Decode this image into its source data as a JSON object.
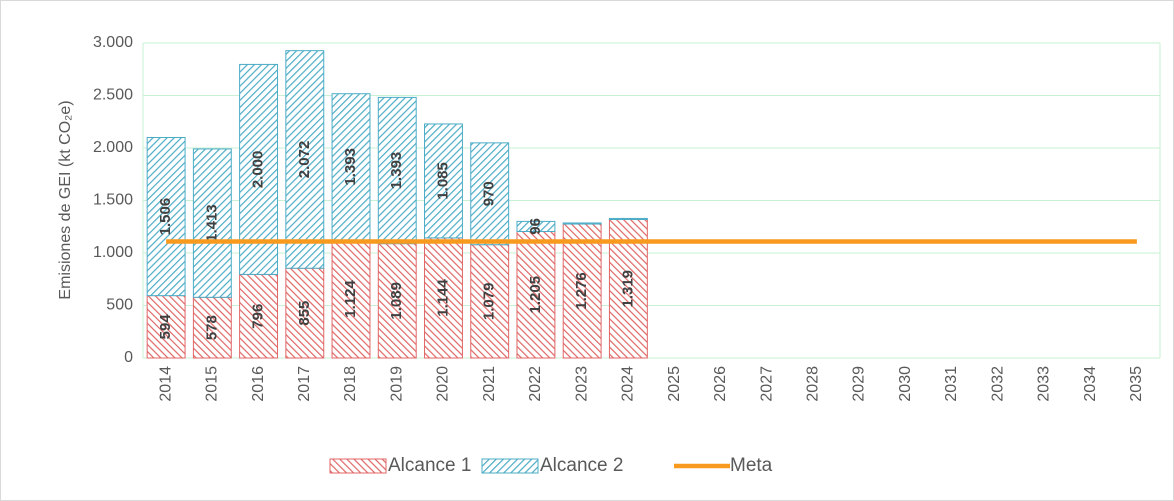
{
  "chart_data": {
    "type": "stacked-bar-line",
    "y_label": "Emisiones de GEI (kt CO₂e)",
    "categories": [
      "2014",
      "2015",
      "2016",
      "2017",
      "2018",
      "2019",
      "2020",
      "2021",
      "2022",
      "2023",
      "2024",
      "2025",
      "2026",
      "2027",
      "2028",
      "2029",
      "2030",
      "2031",
      "2032",
      "2033",
      "2034",
      "2035"
    ],
    "series": [
      {
        "name": "Alcance 1",
        "color": "#e06666",
        "kind": "bar",
        "values": [
          594,
          578,
          796,
          855,
          1124,
          1089,
          1144,
          1079,
          1205,
          1276,
          1319,
          null,
          null,
          null,
          null,
          null,
          null,
          null,
          null,
          null,
          null,
          null
        ],
        "value_labels": [
          "594",
          "578",
          "796",
          "855",
          "1.124",
          "1.089",
          "1.144",
          "1.079",
          "1.205",
          "1.276",
          "1.319",
          null,
          null,
          null,
          null,
          null,
          null,
          null,
          null,
          null,
          null,
          null
        ]
      },
      {
        "name": "Alcance 2",
        "color": "#4bacc6",
        "kind": "bar",
        "values": [
          1506,
          1413,
          2000,
          2072,
          1393,
          1393,
          1085,
          970,
          96,
          10,
          10,
          null,
          null,
          null,
          null,
          null,
          null,
          null,
          null,
          null,
          null,
          null
        ],
        "value_labels": [
          "1.506",
          "1.413",
          "2.000",
          "2.072",
          "1.393",
          "1.393",
          "1.085",
          "970",
          "96",
          null,
          null,
          null,
          null,
          null,
          null,
          null,
          null,
          null,
          null,
          null,
          null,
          null
        ]
      },
      {
        "name": "Meta",
        "color": "#f79a1e",
        "kind": "line",
        "values": [
          1110,
          1110,
          1110,
          1110,
          1110,
          1110,
          1110,
          1110,
          1110,
          1110,
          1110,
          1110,
          1110,
          1110,
          1110,
          1110,
          1110,
          1110,
          1110,
          1110,
          1110,
          1110
        ]
      }
    ],
    "ylim": [
      0,
      3000
    ],
    "yticks": [
      0,
      500,
      {
        "value": 1000,
        "label": "1.000"
      },
      {
        "value": 1500,
        "label": "1.500"
      },
      {
        "value": 2000,
        "label": "2.000"
      },
      {
        "value": 2500,
        "label": "2.500"
      },
      {
        "value": 3000,
        "label": "3.000"
      }
    ],
    "grid": true,
    "legend": "bottom"
  }
}
